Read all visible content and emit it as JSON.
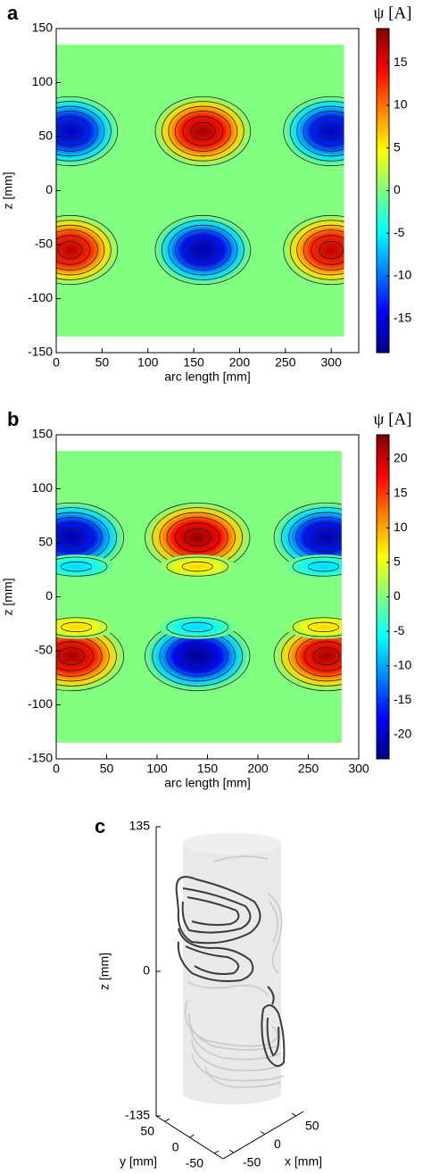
{
  "chart_data": [
    {
      "type": "heatmap",
      "label": "a",
      "xlabel": "arc length [mm]",
      "ylabel": "z [mm]",
      "colorbar_label": "ψ [A]",
      "colormap": "jet",
      "xlim": [
        0,
        330
      ],
      "xticks": [
        0,
        50,
        100,
        150,
        200,
        250,
        300
      ],
      "ylim": [
        -150,
        150
      ],
      "yticks": [
        -150,
        -100,
        -50,
        0,
        50,
        100,
        150
      ],
      "data_x_range": [
        0,
        314
      ],
      "data_z_range": [
        -135,
        135
      ],
      "clim": [
        -19,
        19
      ],
      "cticks": [
        -15,
        -10,
        -5,
        0,
        5,
        10,
        15
      ],
      "peaks": [
        {
          "x": 15,
          "z": 55,
          "value": -17
        },
        {
          "x": 160,
          "z": 55,
          "value": 18
        },
        {
          "x": 300,
          "z": 55,
          "value": -17
        },
        {
          "x": 15,
          "z": -55,
          "value": 17
        },
        {
          "x": 160,
          "z": -55,
          "value": -18
        },
        {
          "x": 300,
          "z": -55,
          "value": 17
        }
      ]
    },
    {
      "type": "heatmap",
      "label": "b",
      "xlabel": "arc length [mm]",
      "ylabel": "z [mm]",
      "colorbar_label": "ψ [A]",
      "colormap": "jet",
      "xlim": [
        0,
        300
      ],
      "xticks": [
        0,
        50,
        100,
        150,
        200,
        250,
        300
      ],
      "ylim": [
        -150,
        150
      ],
      "yticks": [
        -150,
        -100,
        -50,
        0,
        50,
        100,
        150
      ],
      "data_x_range": [
        0,
        283
      ],
      "data_z_range": [
        -135,
        135
      ],
      "clim": [
        -23.5,
        23.5
      ],
      "cticks": [
        -20,
        -15,
        -10,
        -5,
        0,
        5,
        10,
        15,
        20
      ],
      "peaks": [
        {
          "x": 15,
          "z": 55,
          "value": -22
        },
        {
          "x": 140,
          "z": 55,
          "value": 23
        },
        {
          "x": 268,
          "z": 55,
          "value": -22
        },
        {
          "x": 15,
          "z": -55,
          "value": 22
        },
        {
          "x": 140,
          "z": -55,
          "value": -23
        },
        {
          "x": 268,
          "z": -55,
          "value": 22
        },
        {
          "x": 20,
          "z": 28,
          "value": -8
        },
        {
          "x": 140,
          "z": 28,
          "value": 8
        },
        {
          "x": 265,
          "z": 28,
          "value": -8
        },
        {
          "x": 20,
          "z": -28,
          "value": 8
        },
        {
          "x": 140,
          "z": -28,
          "value": -8
        },
        {
          "x": 265,
          "z": -28,
          "value": 8
        }
      ]
    },
    {
      "type": "3d-contour",
      "label": "c",
      "xlabel": "x [mm]",
      "ylabel": "y [mm]",
      "zlabel": "z [mm]",
      "zlim": [
        -135,
        135
      ],
      "zticks": [
        -135,
        0,
        135
      ],
      "xlim": [
        -50,
        50
      ],
      "xticks": [
        -50,
        0,
        50
      ],
      "ylim": [
        -50,
        50
      ],
      "yticks": [
        -50,
        0,
        50
      ]
    }
  ]
}
